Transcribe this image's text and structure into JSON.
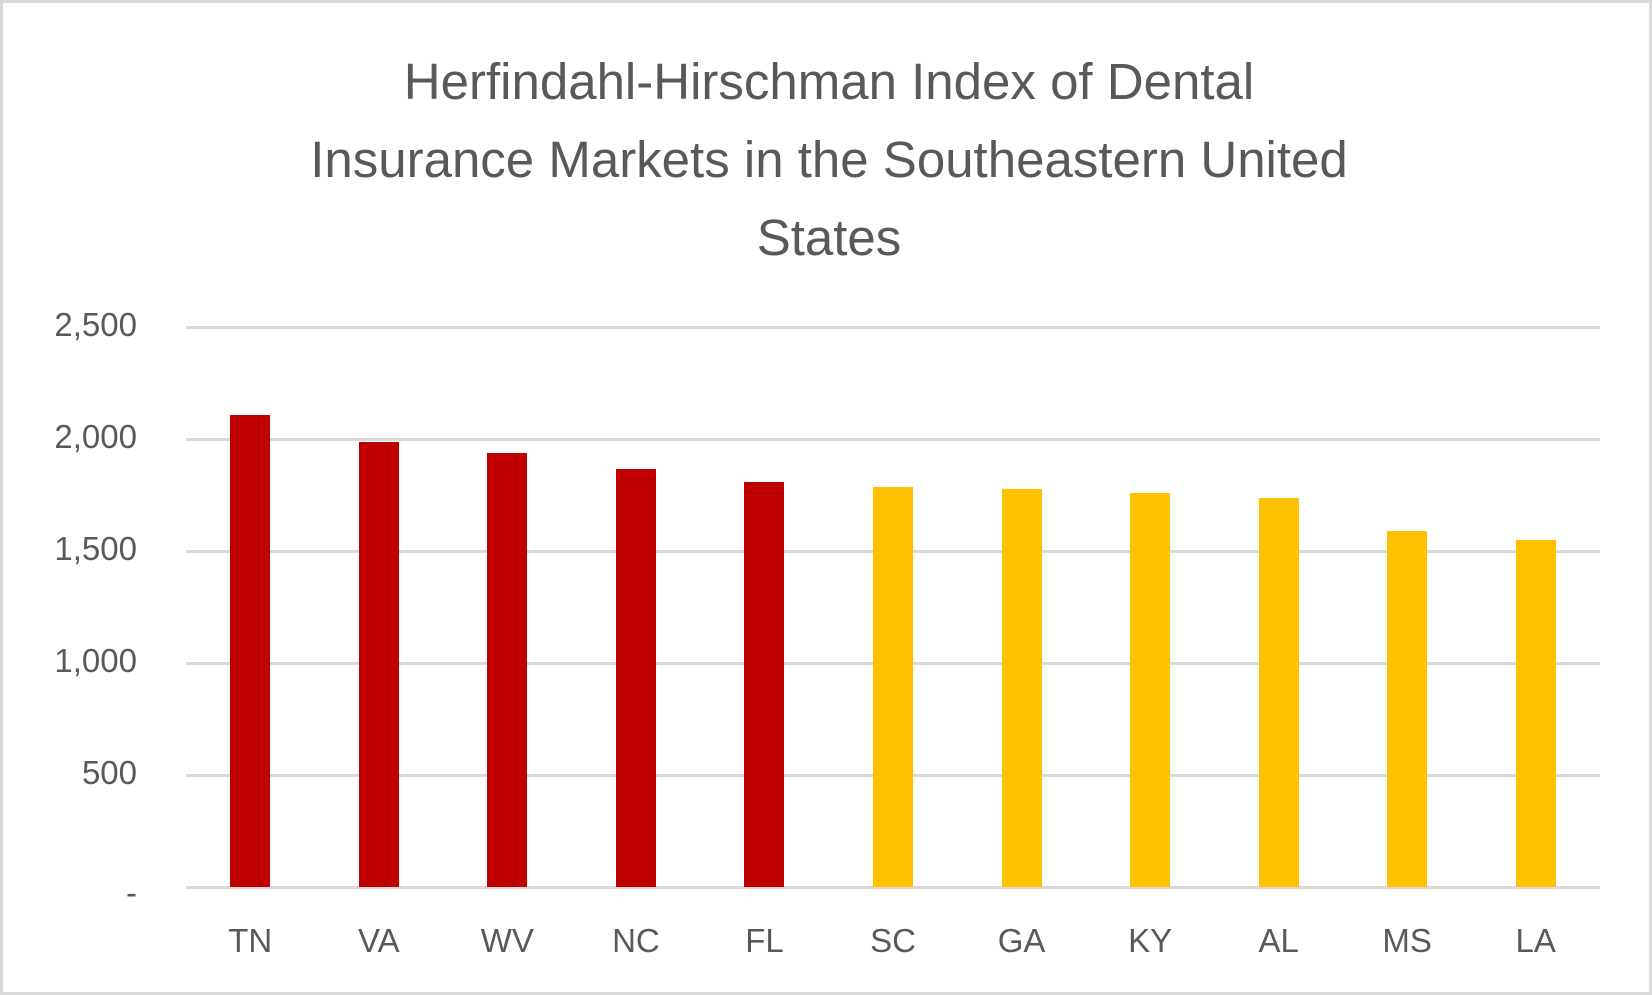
{
  "chart_data": {
    "type": "bar",
    "title": "Herfindahl-Hirschman Index of Dental Insurance Markets in the Southeastern United States",
    "title_lines": [
      "Herfindahl-Hirschman Index of Dental",
      "Insurance Markets in the Southeastern United",
      "States"
    ],
    "xlabel": "",
    "ylabel": "",
    "categories": [
      "TN",
      "VA",
      "WV",
      "NC",
      "FL",
      "SC",
      "GA",
      "KY",
      "AL",
      "MS",
      "LA"
    ],
    "values": [
      2107,
      1987,
      1938,
      1866,
      1808,
      1786,
      1777,
      1759,
      1737,
      1589,
      1549
    ],
    "bar_colors": [
      "#c00000",
      "#c00000",
      "#c00000",
      "#c00000",
      "#c00000",
      "#ffc000",
      "#ffc000",
      "#ffc000",
      "#ffc000",
      "#ffc000",
      "#ffc000"
    ],
    "ylim": [
      0,
      2500
    ],
    "yticks": [
      0,
      500,
      1000,
      1500,
      2000,
      2500
    ],
    "ytick_labels": [
      "-",
      "500",
      "1,000",
      "1,500",
      "2,000",
      "2,500"
    ],
    "grid": true,
    "legend": null
  },
  "colors": {
    "high_concentration": "#c00000",
    "moderate_concentration": "#ffc000",
    "gridline": "#d9d9d9",
    "text": "#595959"
  }
}
